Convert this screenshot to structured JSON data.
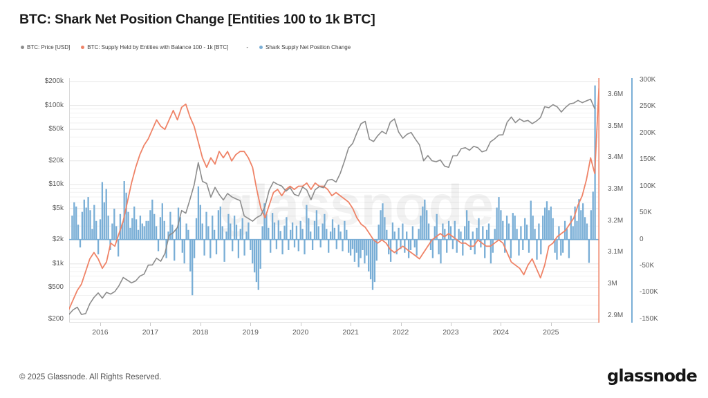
{
  "page": {
    "title": "BTC: Shark Net Position Change [Entities 100 to 1k BTC]"
  },
  "legend": {
    "separator": "-",
    "items": [
      {
        "label": "BTC: Price [USD]",
        "color": "#8c8c8c"
      },
      {
        "label": "BTC: Supply Held by Entities with Balance 100 - 1k [BTC]",
        "color": "#ef8367"
      },
      {
        "label": "Shark Supply Net Position Change",
        "color": "#79aed6"
      }
    ]
  },
  "watermark": "glassnode",
  "footer": {
    "copyright": "© 2025 Glassnode. All Rights Reserved.",
    "brand": "glassnode"
  },
  "chart_data": {
    "type": "mixed",
    "title": "BTC: Shark Net Position Change [Entities 100 to 1k BTC]",
    "x_axis": {
      "domain": [
        2015.379,
        2025.969
      ],
      "year_labels": [
        2016,
        2017,
        2018,
        2019,
        2020,
        2021,
        2022,
        2023,
        2024,
        2025
      ]
    },
    "axes": {
      "price": {
        "side": "left",
        "scale": "log",
        "unit": "USD",
        "domain": [
          181,
          221300
        ],
        "ticks": [
          {
            "label": "$200k",
            "v": 200000
          },
          {
            "label": "$100k",
            "v": 100000
          },
          {
            "label": "$50k",
            "v": 50000
          },
          {
            "label": "$20k",
            "v": 20000
          },
          {
            "label": "$10k",
            "v": 10000
          },
          {
            "label": "$5k",
            "v": 5000
          },
          {
            "label": "$2k",
            "v": 2000
          },
          {
            "label": "$1k",
            "v": 1000
          },
          {
            "label": "$500",
            "v": 500
          },
          {
            "label": "$200",
            "v": 200
          }
        ]
      },
      "supply": {
        "side": "right",
        "scale": "linear",
        "unit": "M BTC",
        "domain": [
          2.8778,
          3.6525
        ],
        "color": "#ef8367",
        "ticks": [
          {
            "label": "3.6M",
            "v": 3.6
          },
          {
            "label": "3.5M",
            "v": 3.5
          },
          {
            "label": "3.4M",
            "v": 3.4
          },
          {
            "label": "3.3M",
            "v": 3.3
          },
          {
            "label": "3.2M",
            "v": 3.2
          },
          {
            "label": "3.1M",
            "v": 3.1
          },
          {
            "label": "3M",
            "v": 3.0
          },
          {
            "label": "2.9M",
            "v": 2.9
          }
        ]
      },
      "net": {
        "side": "far-right",
        "scale": "linear",
        "unit": "K BTC",
        "domain": [
          -156.6,
          303.8
        ],
        "color": "#79aed6",
        "ticks": [
          {
            "label": "300K",
            "v": 300
          },
          {
            "label": "250K",
            "v": 250
          },
          {
            "label": "200K",
            "v": 200
          },
          {
            "label": "150K",
            "v": 150
          },
          {
            "label": "100K",
            "v": 100
          },
          {
            "label": "50K",
            "v": 50
          },
          {
            "label": "0",
            "v": 0
          },
          {
            "label": "-50K",
            "v": -50
          },
          {
            "label": "-100K",
            "v": -100
          },
          {
            "label": "-150K",
            "v": -150
          }
        ]
      }
    },
    "series": [
      {
        "name": "BTC: Price [USD]",
        "type": "line",
        "axis": "price",
        "color": "#8c8c8c",
        "t0": 2015.375,
        "dt": 0.0833333,
        "values": [
          230,
          263,
          284,
          230,
          236,
          314,
          377,
          430,
          369,
          437,
          416,
          448,
          531,
          673,
          624,
          575,
          610,
          701,
          742,
          964,
          970,
          1180,
          1080,
          1350,
          2290,
          2480,
          2880,
          4710,
          4360,
          6470,
          9920,
          19000,
          11000,
          10360,
          6940,
          9240,
          7500,
          6400,
          7730,
          7030,
          6630,
          6300,
          4030,
          3740,
          3460,
          3850,
          4100,
          5320,
          8560,
          10820,
          10090,
          9590,
          8290,
          9150,
          7550,
          7190,
          9350,
          8550,
          6440,
          8630,
          9450,
          9140,
          11350,
          11650,
          10780,
          13800,
          19700,
          29000,
          33110,
          45140,
          58780,
          63000,
          37330,
          35040,
          41460,
          47110,
          43790,
          61320,
          67500,
          46220,
          38480,
          43190,
          45540,
          37640,
          31790,
          19985,
          23290,
          20050,
          19430,
          20490,
          17160,
          16540,
          23130,
          23140,
          28480,
          29250,
          27220,
          30480,
          29230,
          25930,
          26960,
          34650,
          37720,
          42270,
          42580,
          61200,
          71330,
          60640,
          67540,
          62680,
          64620,
          58970,
          63330,
          70220,
          96450,
          93430,
          102100,
          96000,
          82550,
          94180,
          104600,
          107100,
          115800,
          108200,
          114000,
          120000,
          91000
        ]
      },
      {
        "name": "BTC: Supply Held by Entities with Balance 100 - 1k [BTC]",
        "type": "line",
        "axis": "supply",
        "color": "#ef8367",
        "t0": 2015.375,
        "dt": 0.0833333,
        "values": [
          2.92,
          2.95,
          2.98,
          3.0,
          3.04,
          3.08,
          3.1,
          3.08,
          3.05,
          3.07,
          3.13,
          3.12,
          3.16,
          3.2,
          3.26,
          3.32,
          3.37,
          3.41,
          3.44,
          3.46,
          3.49,
          3.52,
          3.5,
          3.49,
          3.52,
          3.55,
          3.52,
          3.56,
          3.57,
          3.53,
          3.5,
          3.45,
          3.4,
          3.37,
          3.4,
          3.38,
          3.42,
          3.4,
          3.42,
          3.39,
          3.41,
          3.42,
          3.42,
          3.4,
          3.37,
          3.3,
          3.24,
          3.21,
          3.25,
          3.29,
          3.3,
          3.28,
          3.3,
          3.31,
          3.3,
          3.31,
          3.31,
          3.32,
          3.3,
          3.32,
          3.31,
          3.31,
          3.3,
          3.28,
          3.29,
          3.28,
          3.27,
          3.26,
          3.24,
          3.21,
          3.19,
          3.18,
          3.16,
          3.14,
          3.13,
          3.14,
          3.13,
          3.11,
          3.1,
          3.11,
          3.12,
          3.11,
          3.1,
          3.09,
          3.08,
          3.1,
          3.12,
          3.14,
          3.15,
          3.16,
          3.15,
          3.16,
          3.15,
          3.14,
          3.13,
          3.13,
          3.12,
          3.12,
          3.14,
          3.13,
          3.12,
          3.12,
          3.13,
          3.14,
          3.13,
          3.1,
          3.07,
          3.06,
          3.05,
          3.03,
          3.06,
          3.08,
          3.05,
          3.02,
          3.06,
          3.12,
          3.13,
          3.15,
          3.16,
          3.17,
          3.19,
          3.21,
          3.25,
          3.28,
          3.33,
          3.4,
          3.35,
          3.62
        ]
      },
      {
        "name": "Shark Supply Net Position Change",
        "type": "bar",
        "axis": "net",
        "color": "#79aed6",
        "t0": 2015.44,
        "dt": 0.04,
        "values": [
          45,
          70,
          62,
          28,
          -15,
          52,
          75,
          60,
          80,
          55,
          20,
          65,
          35,
          -28,
          38,
          108,
          70,
          95,
          45,
          -20,
          30,
          58,
          25,
          -32,
          48,
          30,
          110,
          88,
          52,
          22,
          40,
          62,
          38,
          18,
          45,
          30,
          25,
          35,
          35,
          55,
          75,
          48,
          25,
          -22,
          42,
          68,
          35,
          -35,
          15,
          52,
          28,
          -40,
          20,
          60,
          42,
          -25,
          -45,
          30,
          18,
          -60,
          -105,
          -35,
          40,
          100,
          65,
          30,
          -30,
          52,
          25,
          -35,
          45,
          18,
          -28,
          55,
          62,
          25,
          -42,
          15,
          48,
          30,
          -22,
          45,
          28,
          -35,
          20,
          40,
          -30,
          15,
          32,
          -20,
          -45,
          -62,
          -80,
          -95,
          -55,
          25,
          68,
          48,
          22,
          -25,
          50,
          32,
          -18,
          36,
          16,
          -28,
          26,
          42,
          -20,
          18,
          32,
          -15,
          26,
          -22,
          35,
          20,
          -28,
          65,
          40,
          15,
          -20,
          35,
          55,
          25,
          -15,
          30,
          48,
          20,
          -25,
          15,
          38,
          22,
          -18,
          28,
          15,
          -22,
          35,
          18,
          -25,
          -30,
          -18,
          -42,
          -25,
          -52,
          -35,
          -20,
          -45,
          -30,
          -60,
          -75,
          -95,
          -80,
          -40,
          28,
          55,
          68,
          42,
          18,
          -28,
          -42,
          32,
          15,
          -28,
          22,
          -18,
          30,
          -25,
          15,
          -35,
          -20,
          25,
          -15,
          -30,
          20,
          45,
          62,
          75,
          55,
          30,
          -20,
          -35,
          25,
          48,
          -28,
          -45,
          30,
          20,
          -25,
          35,
          25,
          -18,
          35,
          -25,
          20,
          15,
          -30,
          25,
          55,
          35,
          -20,
          15,
          -28,
          22,
          40,
          -15,
          25,
          -35,
          18,
          30,
          -45,
          -25,
          20,
          60,
          80,
          55,
          35,
          -25,
          45,
          30,
          -35,
          50,
          45,
          20,
          -30,
          25,
          -20,
          40,
          28,
          -25,
          73,
          45,
          20,
          -38,
          30,
          -28,
          45,
          60,
          72,
          55,
          62,
          40,
          -25,
          -38,
          25,
          -30,
          -25,
          35,
          20,
          -35,
          45,
          25,
          62,
          35,
          76,
          55,
          68,
          42,
          30,
          -44,
          55,
          90,
          290
        ]
      }
    ]
  }
}
